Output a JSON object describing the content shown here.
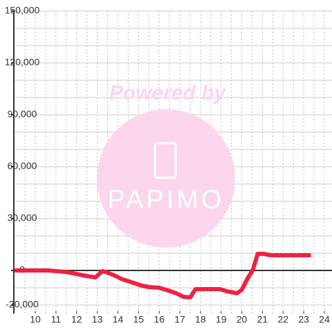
{
  "chart_data": {
    "type": "line",
    "annotations": [
      "Powered by",
      "PAPIMO"
    ],
    "x": [
      9.0,
      10.64,
      10.97,
      11.47,
      11.98,
      12.48,
      12.91,
      13.25,
      13.48,
      13.82,
      14.15,
      14.65,
      15.16,
      15.49,
      15.99,
      16.33,
      16.83,
      17.16,
      17.5,
      17.76,
      18.94,
      19.27,
      19.77,
      20.0,
      20.27,
      20.54,
      20.77,
      21.07,
      21.4,
      23.35
    ],
    "series": [
      {
        "color": "#ee2244",
        "values": [
          0,
          0,
          -400,
          -800,
          -2000,
          -3200,
          -4000,
          -400,
          -1200,
          -2800,
          -4800,
          -6800,
          -8800,
          -9600,
          -10000,
          -11200,
          -13200,
          -15200,
          -15600,
          -10800,
          -10800,
          -12000,
          -13200,
          -11200,
          -4800,
          400,
          9600,
          9600,
          8800,
          8800
        ]
      }
    ],
    "xlim": [
      8.96,
      24.37
    ],
    "ylim": [
      -25000,
      150000
    ],
    "xticks": [
      10,
      11,
      12,
      13,
      14,
      15,
      16,
      17,
      18,
      19,
      20,
      21,
      22,
      23,
      24
    ],
    "yticks": [
      {
        "value": -20000,
        "label": "-20,000"
      },
      0,
      {
        "value": 30000,
        "label": "30,000"
      },
      {
        "value": 60000,
        "label": "60,000"
      },
      {
        "value": 90000,
        "label": "90,000"
      },
      {
        "value": 120000,
        "label": "120,000"
      },
      {
        "value": 150000,
        "label": "150,000"
      }
    ],
    "xgrid": [
      9.5,
      10,
      10.5,
      11,
      11.5,
      12,
      12.5,
      13,
      13.5,
      14,
      14.5,
      15,
      15.5,
      16,
      16.5,
      17,
      17.5,
      18,
      18.5,
      19,
      19.5,
      20,
      20.5,
      21,
      21.5,
      22,
      22.5,
      23,
      23.5,
      24
    ],
    "ygrid": [
      -20000,
      -10000,
      10000,
      20000,
      30000,
      40000,
      50000,
      60000,
      70000,
      80000,
      90000,
      100000,
      110000,
      120000,
      130000,
      140000,
      150000
    ]
  }
}
